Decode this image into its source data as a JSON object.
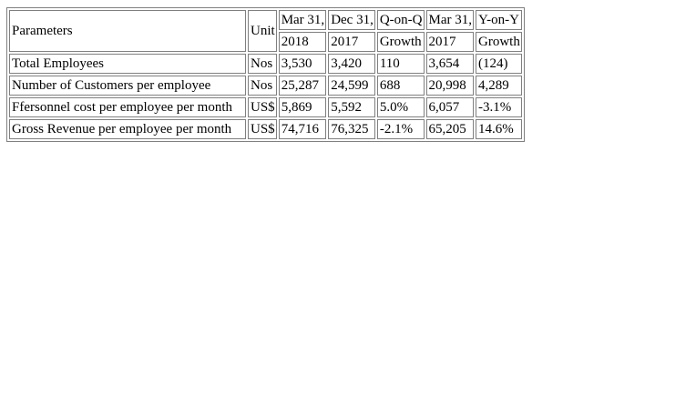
{
  "table": {
    "header": {
      "parameters": "Parameters",
      "unit": "Unit",
      "columns": [
        {
          "top": "Mar 31,",
          "bottom": "2018"
        },
        {
          "top": "Dec 31,",
          "bottom": "2017"
        },
        {
          "top": "Q-on-Q",
          "bottom": "Growth"
        },
        {
          "top": "Mar 31,",
          "bottom": "2017"
        },
        {
          "top": "Y-on-Y",
          "bottom": "Growth"
        }
      ]
    },
    "rows": [
      {
        "parameter": "Total Employees",
        "unit": "Nos",
        "values": [
          "3,530",
          "3,420",
          "110",
          "3,654",
          "(124)"
        ]
      },
      {
        "parameter": "Number of Customers per employee",
        "unit": "Nos",
        "values": [
          "25,287",
          "24,599",
          "688",
          "20,998",
          "4,289"
        ]
      },
      {
        "parameter": "Ffersonnel cost per employee per month",
        "unit": "US$",
        "values": [
          "5,869",
          "5,592",
          "5.0%",
          "6,057",
          "-3.1%"
        ]
      },
      {
        "parameter": "Gross Revenue per employee per month",
        "unit": "US$",
        "values": [
          "74,716",
          "76,325",
          "-2.1%",
          "65,205",
          "14.6%"
        ]
      }
    ]
  }
}
